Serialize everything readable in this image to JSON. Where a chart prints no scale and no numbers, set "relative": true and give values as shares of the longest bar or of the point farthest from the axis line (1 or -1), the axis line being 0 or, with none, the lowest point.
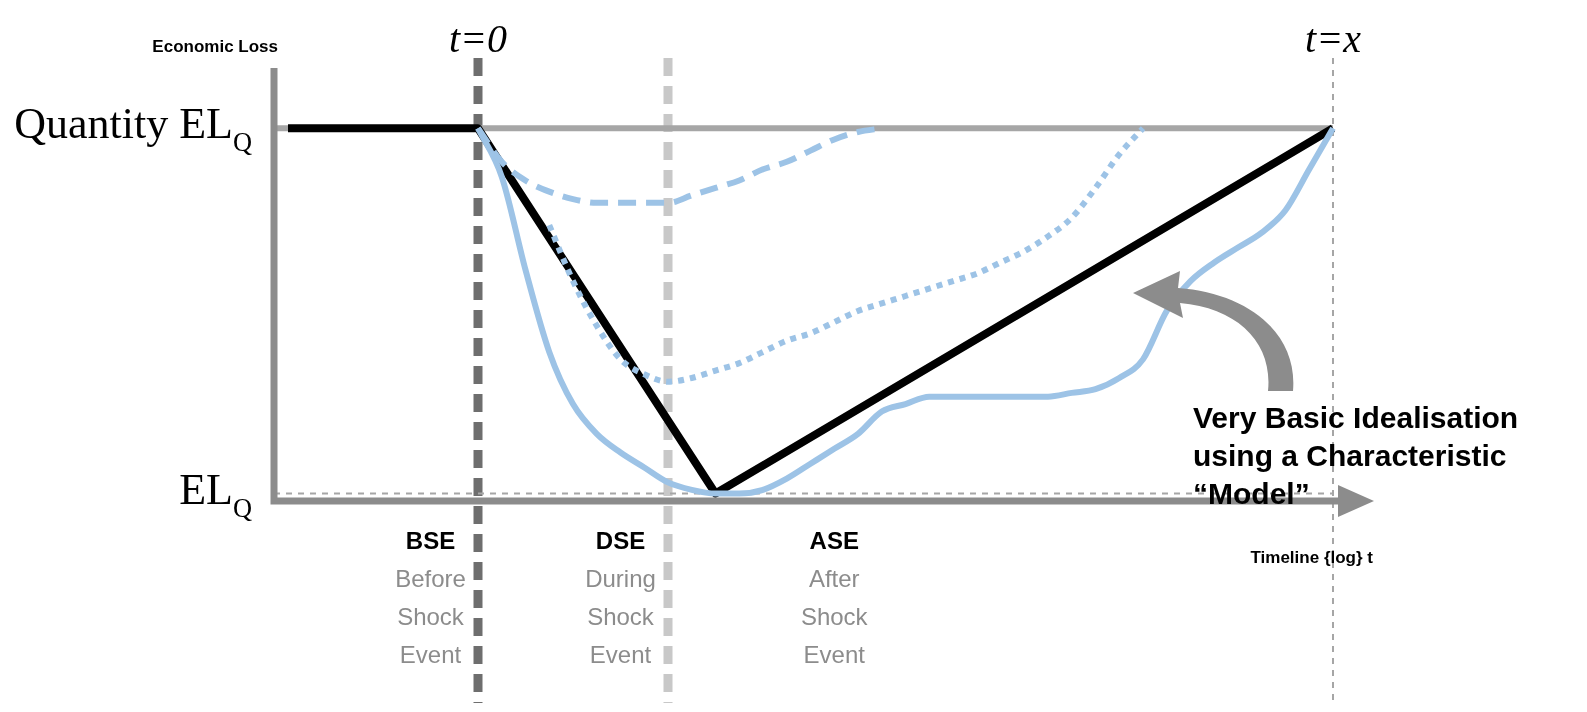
{
  "chart_data": {
    "type": "line",
    "relative": true,
    "ylabel": "Economic Loss",
    "xlabel": "Timeline {log} t",
    "legend": false,
    "marker": "none",
    "categories": [
      null,
      null,
      null,
      null,
      null,
      null,
      "BSE\nBefore\nShock\nEvent",
      null,
      null,
      null,
      null,
      null,
      null,
      null,
      "DSE\nDuring\nShock\nEvent",
      null,
      null,
      null,
      null,
      null,
      null,
      null,
      null,
      "ASE\nAfter\nShock\nEvent",
      null,
      null,
      null,
      null,
      null,
      null,
      null,
      null,
      null,
      null,
      null,
      null,
      null,
      null,
      null,
      null,
      null,
      null,
      null,
      null,
      null
    ],
    "series": [
      {
        "color": "#9dc3e6",
        "line_style": "dashed",
        "values": [
          null,
          null,
          null,
          null,
          null,
          null,
          null,
          null,
          1,
          0.91,
          0.86,
          0.83,
          0.81,
          0.8,
          0.8,
          0.8,
          0.8,
          0.82,
          0.84,
          0.86,
          0.89,
          0.91,
          0.94,
          0.97,
          0.99,
          1,
          null,
          null,
          null,
          null,
          null,
          null,
          null,
          null,
          null,
          null,
          null,
          null,
          null,
          null,
          null,
          null,
          null,
          null,
          null
        ]
      },
      {
        "color": "#9dc3e6",
        "line_style": "dotted",
        "values": [
          null,
          null,
          null,
          null,
          null,
          null,
          null,
          null,
          null,
          null,
          null,
          0.74,
          0.59,
          0.47,
          0.38,
          0.34,
          0.32,
          0.33,
          0.35,
          0.37,
          0.4,
          0.43,
          0.45,
          0.48,
          0.51,
          0.53,
          0.55,
          0.57,
          0.59,
          0.61,
          0.64,
          0.67,
          0.71,
          0.76,
          0.84,
          0.93,
          1,
          null,
          null,
          null,
          null,
          null,
          null,
          null,
          null
        ]
      },
      {
        "color": "#9dc3e6",
        "line_style": "solid",
        "values": [
          null,
          null,
          null,
          null,
          null,
          null,
          null,
          null,
          1,
          0.87,
          0.62,
          0.4,
          0.26,
          0.18,
          0.13,
          0.09,
          0.05,
          0.03,
          0.02,
          0.02,
          0.03,
          0.06,
          0.1,
          0.14,
          0.18,
          0.24,
          0.26,
          0.28,
          0.28,
          0.28,
          0.28,
          0.28,
          0.28,
          0.29,
          0.3,
          0.33,
          0.38,
          0.51,
          0.59,
          0.64,
          0.68,
          0.72,
          0.78,
          0.89,
          1
        ]
      },
      {
        "color": "#000000",
        "line_style": "solid",
        "values": [
          1,
          1,
          1,
          1,
          1,
          1,
          1,
          1,
          1,
          null,
          null,
          null,
          null,
          null,
          null,
          null,
          null,
          null,
          0.02,
          null,
          null,
          null,
          null,
          null,
          null,
          null,
          null,
          null,
          null,
          null,
          null,
          null,
          null,
          null,
          null,
          null,
          null,
          null,
          null,
          null,
          null,
          null,
          null,
          null,
          1
        ]
      }
    ],
    "ref_lines": [
      {
        "axis": "y",
        "value": 1,
        "label": "Quantity EL$_{Q}$",
        "color": "#a6a6a6",
        "line_style": "solid"
      },
      {
        "axis": "y",
        "value": 0.02,
        "label": "EL$_{Q}$",
        "color": "#a6a6a6",
        "line_style": "dotted"
      }
    ],
    "annotations": [
      "t=0",
      "t=x",
      "Very Basic Idealisation using a Characteristic “Model”"
    ]
  }
}
